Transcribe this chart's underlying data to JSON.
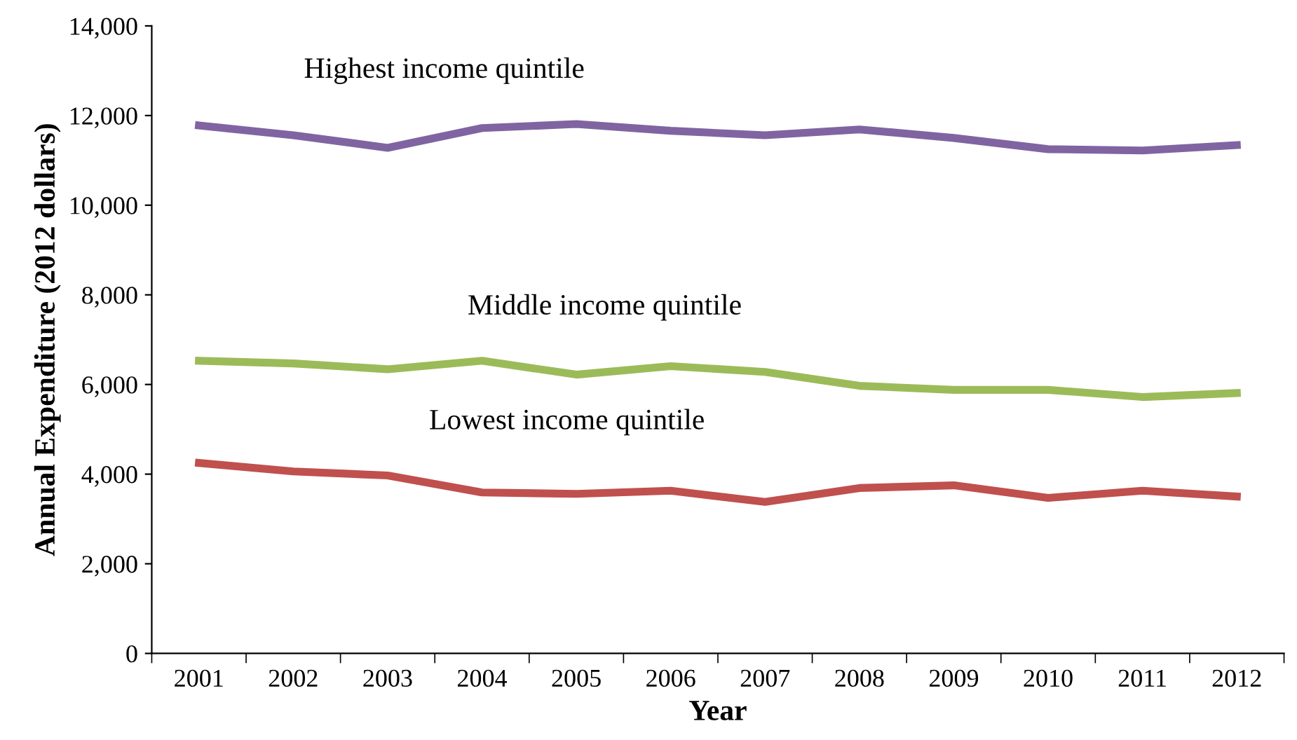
{
  "chart_data": {
    "type": "line",
    "xlabel": "Year",
    "ylabel": "Annual Expenditure (2012 dollars)",
    "categories": [
      "2001",
      "2002",
      "2003",
      "2004",
      "2005",
      "2006",
      "2007",
      "2008",
      "2009",
      "2010",
      "2011",
      "2012"
    ],
    "series": [
      {
        "name": "Highest income quintile",
        "color": "#8064a2",
        "values": [
          11780,
          11560,
          11280,
          11720,
          11810,
          11660,
          11560,
          11690,
          11500,
          11250,
          11220,
          11340
        ]
      },
      {
        "name": "Middle income quintile",
        "color": "#9bbb59",
        "values": [
          6530,
          6470,
          6340,
          6530,
          6220,
          6410,
          6280,
          5970,
          5880,
          5880,
          5720,
          5810
        ]
      },
      {
        "name": "Lowest income quintile",
        "color": "#c0504d",
        "values": [
          4250,
          4060,
          3970,
          3590,
          3560,
          3630,
          3380,
          3690,
          3750,
          3470,
          3630,
          3500
        ]
      }
    ],
    "ylim": [
      0,
      14000
    ],
    "yticks": [
      {
        "value": 0,
        "label": "0"
      },
      {
        "value": 2000,
        "label": "2,000"
      },
      {
        "value": 4000,
        "label": "4,000"
      },
      {
        "value": 6000,
        "label": "6,000"
      },
      {
        "value": 8000,
        "label": "8,000"
      },
      {
        "value": 10000,
        "label": "10,000"
      },
      {
        "value": 12000,
        "label": "12,000"
      },
      {
        "value": 14000,
        "label": "14,000"
      }
    ],
    "grid": false,
    "legend": false,
    "marker": "none",
    "line_style": "solid"
  }
}
